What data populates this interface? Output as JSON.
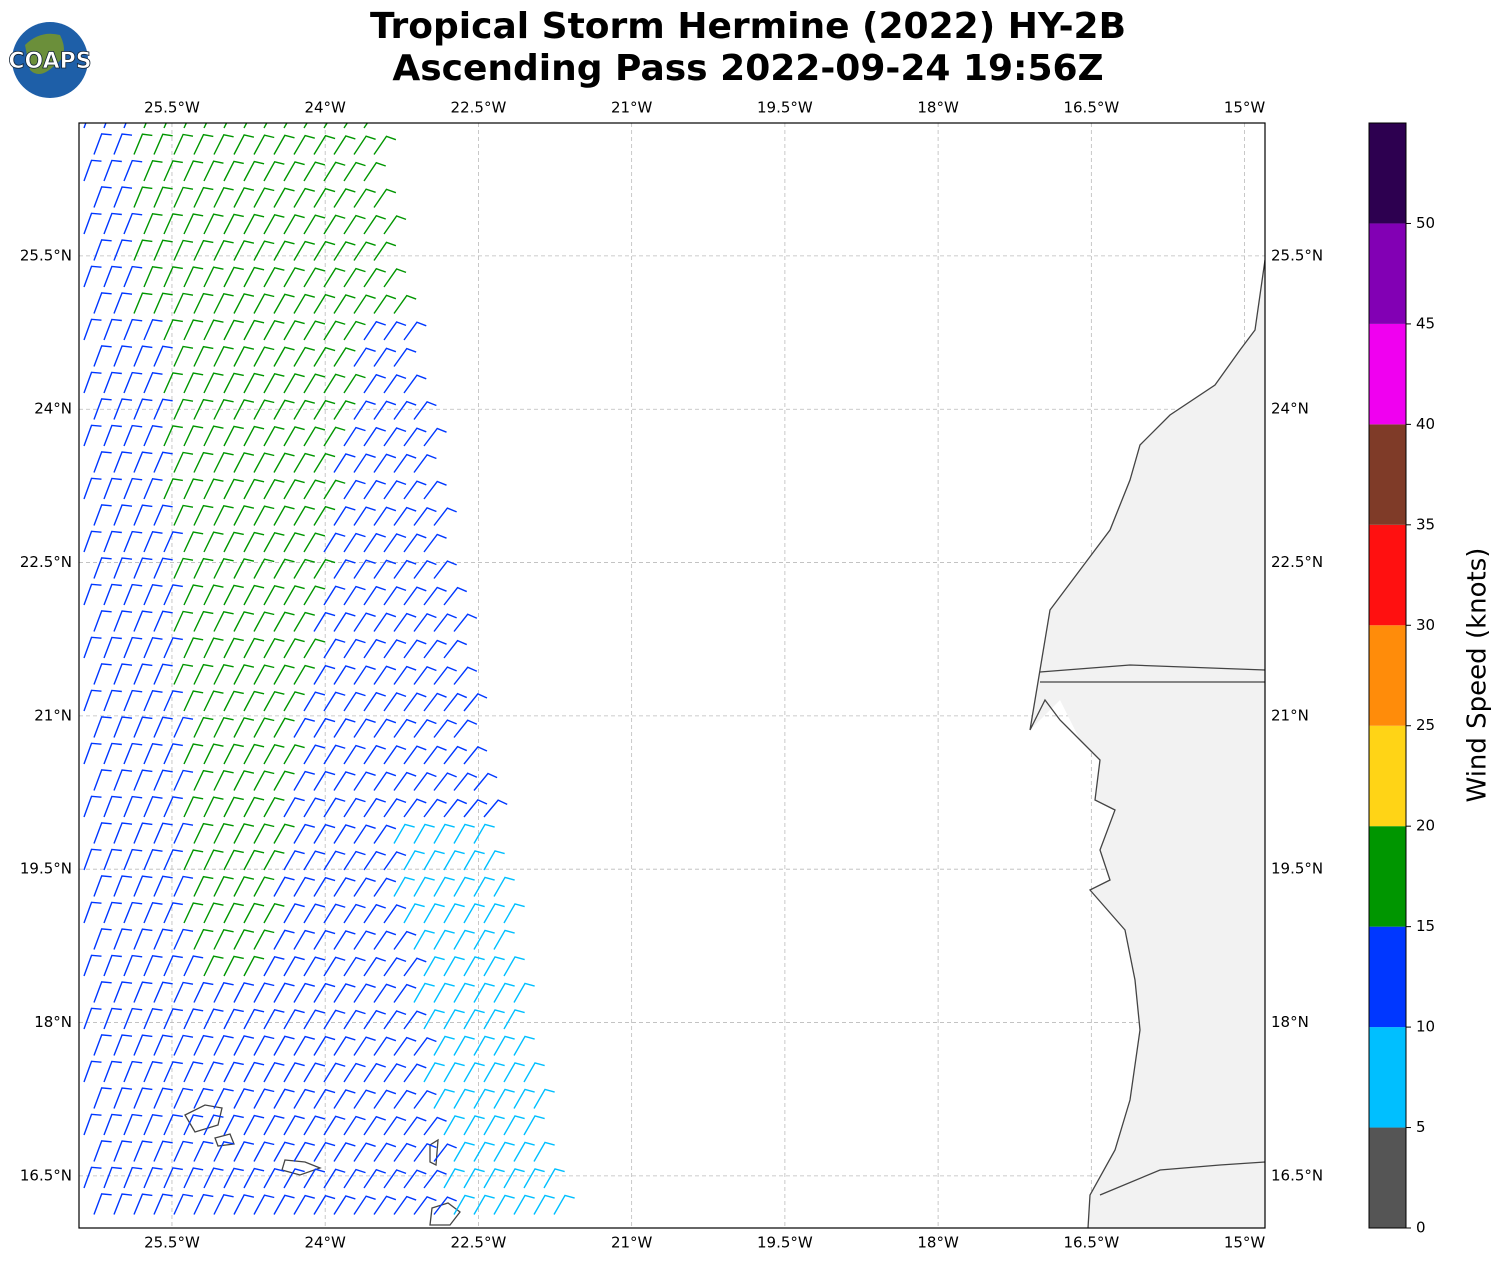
{
  "header": {
    "logo": "COAPS",
    "title": [
      "Tropical Storm Hermine (2022) HY-2B",
      "Ascending Pass 2022-09-24 19:56Z"
    ]
  },
  "map": {
    "xlim": [
      -26.41,
      -14.8
    ],
    "ylim": [
      15.99,
      26.8
    ],
    "grid": true,
    "xticks": [
      {
        "value": -25.5,
        "label": "25.5°W"
      },
      {
        "value": -24,
        "label": "24°W"
      },
      {
        "value": -22.5,
        "label": "22.5°W"
      },
      {
        "value": -21,
        "label": "21°W"
      },
      {
        "value": -19.5,
        "label": "19.5°W"
      },
      {
        "value": -18,
        "label": "18°W"
      },
      {
        "value": -16.5,
        "label": "16.5°W"
      },
      {
        "value": -15,
        "label": "15°W"
      }
    ],
    "yticks": [
      {
        "value": 16.5,
        "label": "16.5°N"
      },
      {
        "value": 18,
        "label": "18°N"
      },
      {
        "value": 19.5,
        "label": "19.5°N"
      },
      {
        "value": 21,
        "label": "21°N"
      },
      {
        "value": 22.5,
        "label": "22.5°N"
      },
      {
        "value": 24,
        "label": "24°N"
      },
      {
        "value": 25.5,
        "label": "25.5°N"
      }
    ]
  },
  "colorbar": {
    "label": "Wind Speed (knots)",
    "lim": [
      0,
      55
    ],
    "ticks": [
      0,
      5,
      10,
      15,
      20,
      25,
      30,
      35,
      40,
      45,
      50
    ],
    "bounds": [
      0,
      5,
      10,
      15,
      20,
      25,
      30,
      35,
      40,
      45,
      50,
      55
    ],
    "colors": [
      "#555555",
      "#00bfff",
      "#0037ff",
      "#009600",
      "#ffd416",
      "#ff8c0a",
      "#ff1010",
      "#7f3b28",
      "#f000f0",
      "#8200b4",
      "#2d0050"
    ]
  }
}
